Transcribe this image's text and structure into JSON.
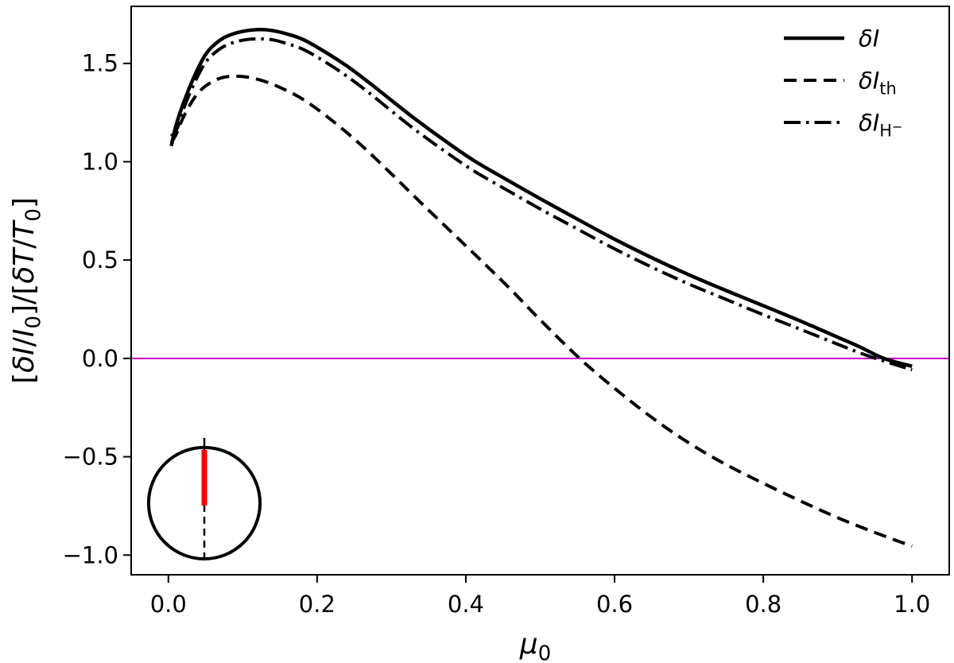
{
  "chart_data": {
    "type": "line",
    "title": "",
    "background": "#ffffff",
    "axis_color": "#000000",
    "grid": false,
    "x_range": [
      -0.05,
      1.05
    ],
    "y_range": [
      -1.1,
      1.79
    ],
    "x_ticks": [
      0.0,
      0.2,
      0.4,
      0.6,
      0.8,
      1.0
    ],
    "x_tick_labels": [
      "0.0",
      "0.2",
      "0.4",
      "0.6",
      "0.8",
      "1.0"
    ],
    "y_ticks": [
      -1.0,
      -0.5,
      0.0,
      0.5,
      1.0,
      1.5
    ],
    "y_tick_labels": [
      "−1.0",
      "−0.5",
      "0.0",
      "0.5",
      "1.0",
      "1.5"
    ],
    "xlabel_segments": [
      {
        "t": "μ",
        "style": "i"
      },
      {
        "t": "0",
        "style": "sub"
      }
    ],
    "ylabel_segments": [
      {
        "t": "[",
        "style": "n"
      },
      {
        "t": "δI",
        "style": "i"
      },
      {
        "t": "/",
        "style": "n"
      },
      {
        "t": "I",
        "style": "i"
      },
      {
        "t": "0",
        "style": "sub"
      },
      {
        "t": "]/[",
        "style": "n"
      },
      {
        "t": "δT",
        "style": "i"
      },
      {
        "t": "/",
        "style": "n"
      },
      {
        "t": "T",
        "style": "i"
      },
      {
        "t": "0",
        "style": "sub"
      },
      {
        "t": "]",
        "style": "n"
      }
    ],
    "hline": {
      "y": 0.0,
      "color": "#CC00CC",
      "width": 2
    },
    "legend": {
      "position": "upper right",
      "frame": false
    },
    "series": [
      {
        "name": "delta-i",
        "label_segments": [
          {
            "t": "δI",
            "style": "i"
          }
        ],
        "line_style": "solid",
        "color": "#000000",
        "width": 4.5,
        "points": [
          [
            0.004,
            1.08
          ],
          [
            0.01,
            1.18
          ],
          [
            0.02,
            1.295
          ],
          [
            0.035,
            1.435
          ],
          [
            0.05,
            1.545
          ],
          [
            0.065,
            1.605
          ],
          [
            0.08,
            1.64
          ],
          [
            0.1,
            1.663
          ],
          [
            0.12,
            1.672
          ],
          [
            0.14,
            1.667
          ],
          [
            0.16,
            1.649
          ],
          [
            0.182,
            1.62
          ],
          [
            0.21,
            1.56
          ],
          [
            0.24,
            1.487
          ],
          [
            0.27,
            1.402
          ],
          [
            0.3,
            1.312
          ],
          [
            0.331,
            1.22
          ],
          [
            0.37,
            1.112
          ],
          [
            0.41,
            1.008
          ],
          [
            0.459,
            0.9
          ],
          [
            0.5,
            0.812
          ],
          [
            0.55,
            0.708
          ],
          [
            0.6,
            0.606
          ],
          [
            0.65,
            0.512
          ],
          [
            0.7,
            0.425
          ],
          [
            0.75,
            0.345
          ],
          [
            0.8,
            0.268
          ],
          [
            0.85,
            0.19
          ],
          [
            0.9,
            0.108
          ],
          [
            0.93,
            0.058
          ],
          [
            0.962,
            0.0
          ],
          [
            1.0,
            -0.04
          ]
        ]
      },
      {
        "name": "delta-i-th",
        "label_segments": [
          {
            "t": "δI",
            "style": "i"
          },
          {
            "t": "th",
            "style": "sub"
          }
        ],
        "line_style": "dashed",
        "color": "#000000",
        "width": 4,
        "points": [
          [
            0.004,
            1.1
          ],
          [
            0.01,
            1.135
          ],
          [
            0.02,
            1.225
          ],
          [
            0.035,
            1.325
          ],
          [
            0.05,
            1.385
          ],
          [
            0.07,
            1.425
          ],
          [
            0.09,
            1.435
          ],
          [
            0.11,
            1.428
          ],
          [
            0.13,
            1.408
          ],
          [
            0.15,
            1.378
          ],
          [
            0.182,
            1.315
          ],
          [
            0.22,
            1.21
          ],
          [
            0.26,
            1.082
          ],
          [
            0.3,
            0.938
          ],
          [
            0.34,
            0.79
          ],
          [
            0.38,
            0.645
          ],
          [
            0.42,
            0.5
          ],
          [
            0.46,
            0.352
          ],
          [
            0.5,
            0.196
          ],
          [
            0.553,
            0.0
          ],
          [
            0.6,
            -0.152
          ],
          [
            0.65,
            -0.3
          ],
          [
            0.7,
            -0.43
          ],
          [
            0.75,
            -0.54
          ],
          [
            0.8,
            -0.635
          ],
          [
            0.85,
            -0.725
          ],
          [
            0.9,
            -0.81
          ],
          [
            0.95,
            -0.885
          ],
          [
            1.0,
            -0.955
          ]
        ]
      },
      {
        "name": "delta-i-hminus",
        "label_segments": [
          {
            "t": "δI",
            "style": "i"
          },
          {
            "t": "H",
            "style": "sub"
          },
          {
            "t": "−",
            "style": "subsup"
          }
        ],
        "line_style": "dashdot",
        "color": "#000000",
        "width": 4,
        "points": [
          [
            0.004,
            1.13
          ],
          [
            0.012,
            1.17
          ],
          [
            0.02,
            1.265
          ],
          [
            0.035,
            1.4
          ],
          [
            0.05,
            1.505
          ],
          [
            0.065,
            1.562
          ],
          [
            0.08,
            1.596
          ],
          [
            0.1,
            1.618
          ],
          [
            0.12,
            1.625
          ],
          [
            0.14,
            1.62
          ],
          [
            0.16,
            1.6
          ],
          [
            0.182,
            1.57
          ],
          [
            0.21,
            1.51
          ],
          [
            0.24,
            1.435
          ],
          [
            0.27,
            1.35
          ],
          [
            0.3,
            1.258
          ],
          [
            0.331,
            1.165
          ],
          [
            0.37,
            1.058
          ],
          [
            0.41,
            0.955
          ],
          [
            0.459,
            0.848
          ],
          [
            0.5,
            0.76
          ],
          [
            0.55,
            0.658
          ],
          [
            0.6,
            0.557
          ],
          [
            0.65,
            0.464
          ],
          [
            0.7,
            0.378
          ],
          [
            0.75,
            0.3
          ],
          [
            0.8,
            0.222
          ],
          [
            0.85,
            0.148
          ],
          [
            0.9,
            0.072
          ],
          [
            0.93,
            0.028
          ],
          [
            0.951,
            0.0
          ],
          [
            1.0,
            -0.058
          ]
        ]
      }
    ],
    "inset": {
      "name": "stellar-disk-inset",
      "center_axes_frac": [
        0.0894,
        0.874
      ],
      "radius_axes_frac": 0.098,
      "circle_color": "#000000",
      "circle_width": 4,
      "rotation_axis_color": "#FF0000",
      "rotation_axis_width": 7,
      "hidden_axis_color": "#000000",
      "hidden_axis_width": 2.5,
      "top_tick_color": "#000000"
    }
  }
}
